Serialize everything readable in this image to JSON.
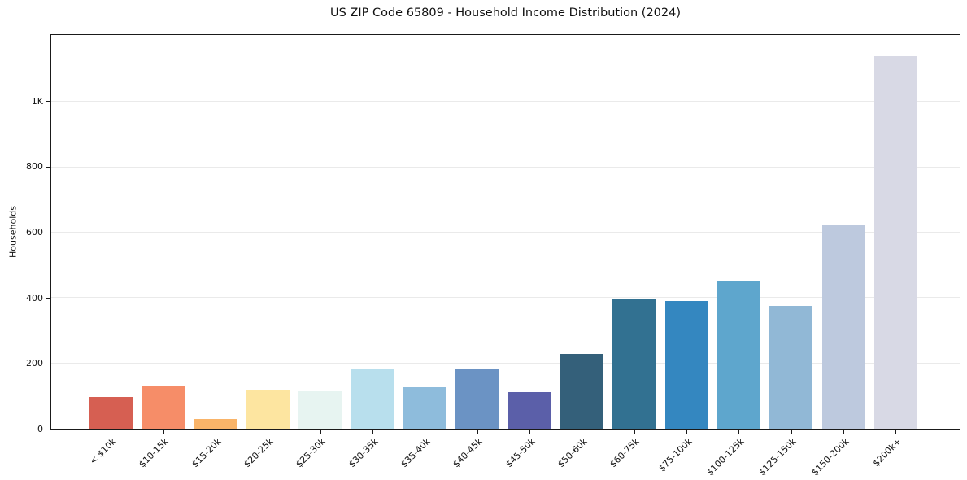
{
  "chart_data": {
    "type": "bar",
    "title": "US ZIP Code 65809 - Household Income Distribution (2024)",
    "xlabel": "",
    "ylabel": "Households",
    "categories": [
      "< $10k",
      "$10-15k",
      "$15-20k",
      "$20-25k",
      "$25-30k",
      "$30-35k",
      "$35-40k",
      "$40-45k",
      "$45-50k",
      "$50-60k",
      "$60-75k",
      "$75-100k",
      "$100-125k",
      "$125-150k",
      "$150-200k",
      "$200k+"
    ],
    "values": [
      97,
      132,
      30,
      119,
      115,
      185,
      127,
      182,
      112,
      228,
      398,
      390,
      453,
      375,
      625,
      1141
    ],
    "bar_colors": [
      "#d65f52",
      "#f68d68",
      "#f9b469",
      "#fde5a0",
      "#e7f4f1",
      "#b8dfed",
      "#8ebcdc",
      "#6b93c4",
      "#5b5fa9",
      "#34607a",
      "#327191",
      "#3487c0",
      "#5ea6cd",
      "#91b8d6",
      "#bdc9de",
      "#d8d9e5"
    ],
    "ylim": [
      0,
      1205
    ],
    "yticks": [
      {
        "value": 0,
        "label": "0"
      },
      {
        "value": 200,
        "label": "200"
      },
      {
        "value": 400,
        "label": "400"
      },
      {
        "value": 600,
        "label": "600"
      },
      {
        "value": 800,
        "label": "800"
      },
      {
        "value": 1000,
        "label": "1K"
      }
    ],
    "grid": true,
    "legend": "none"
  },
  "colors": {
    "background": "#ffffff",
    "grid": "#eaeaea",
    "spine": "#1a1a1a",
    "text": "#111111"
  }
}
